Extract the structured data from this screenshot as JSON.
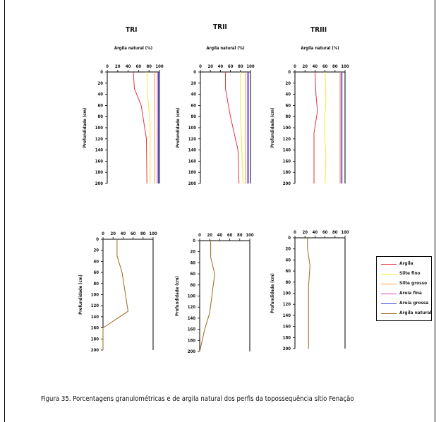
{
  "caption": "Figura 35. Porcentagens granulométricas e de argila natural dos perfis da topossequência sítio Fenação",
  "panel_titles": [
    "TRI",
    "TRII",
    "TRIII"
  ],
  "legend": [
    {
      "label": "Argila",
      "color": "#e8333d"
    },
    {
      "label": "Silte fino",
      "color": "#f5e83a"
    },
    {
      "label": "Silte grosso",
      "color": "#f0a040"
    },
    {
      "label": "Areia fina",
      "color": "#cc44cc"
    },
    {
      "label": "Areia grossa",
      "color": "#3344dd"
    },
    {
      "label": "Argila natural",
      "color": "#9a6a1a"
    }
  ],
  "chart_data": [
    {
      "type": "line",
      "title": "TRI",
      "xlabel": "Argila natural (%)",
      "ylabel": "Profundidade (cm)",
      "xlim": [
        0,
        100
      ],
      "ylim": [
        0,
        200
      ],
      "xticks": [
        0,
        20,
        40,
        60,
        80,
        100
      ],
      "yticks": [
        0,
        20,
        40,
        60,
        80,
        100,
        120,
        140,
        160,
        180,
        200
      ],
      "x_axis": "top",
      "y_inverted": true,
      "series": [
        {
          "name": "Argila",
          "color": "#e8333d",
          "points": [
            [
              50,
              0
            ],
            [
              52,
              30
            ],
            [
              65,
              60
            ],
            [
              75,
              120
            ],
            [
              76,
              200
            ]
          ]
        },
        {
          "name": "Silte fino",
          "color": "#f5e83a",
          "points": [
            [
              76,
              0
            ],
            [
              77,
              40
            ],
            [
              82,
              90
            ],
            [
              82,
              200
            ]
          ]
        },
        {
          "name": "Silte grosso",
          "color": "#f0a040",
          "points": [
            [
              90,
              0
            ],
            [
              90,
              80
            ],
            [
              91,
              200
            ]
          ]
        },
        {
          "name": "Areia fina",
          "color": "#cc44cc",
          "points": [
            [
              96,
              0
            ],
            [
              96,
              200
            ]
          ]
        },
        {
          "name": "Areia grossa",
          "color": "#3344dd",
          "points": [
            [
              98,
              0
            ],
            [
              98,
              200
            ]
          ]
        }
      ]
    },
    {
      "type": "line",
      "title": "TRII",
      "xlabel": "Argila natural (%)",
      "ylabel": "Profundidade (cm)",
      "xlim": [
        0,
        100
      ],
      "ylim": [
        0,
        200
      ],
      "xticks": [
        0,
        20,
        40,
        60,
        80,
        100
      ],
      "yticks": [
        0,
        20,
        40,
        60,
        80,
        100,
        120,
        140,
        160,
        180,
        200
      ],
      "x_axis": "top",
      "y_inverted": true,
      "series": [
        {
          "name": "Argila",
          "color": "#e8333d",
          "points": [
            [
              50,
              0
            ],
            [
              50,
              30
            ],
            [
              60,
              80
            ],
            [
              75,
              140
            ],
            [
              77,
              200
            ]
          ]
        },
        {
          "name": "Silte fino",
          "color": "#f5e83a",
          "points": [
            [
              80,
              0
            ],
            [
              80,
              80
            ],
            [
              82,
              120
            ],
            [
              85,
              200
            ]
          ]
        },
        {
          "name": "Silte grosso",
          "color": "#f0a040",
          "points": [
            [
              90,
              0
            ],
            [
              90,
              200
            ]
          ]
        },
        {
          "name": "Areia fina",
          "color": "#cc44cc",
          "points": [
            [
              94,
              0
            ],
            [
              94,
              200
            ]
          ]
        },
        {
          "name": "Areia grossa",
          "color": "#3344dd",
          "points": [
            [
              96,
              0
            ],
            [
              96,
              200
            ]
          ]
        }
      ]
    },
    {
      "type": "line",
      "title": "TRIII",
      "xlabel": "Argila natural (%)",
      "ylabel": "Profundidade (cm)",
      "xlim": [
        0,
        100
      ],
      "ylim": [
        0,
        200
      ],
      "xticks": [
        0,
        20,
        40,
        60,
        80,
        100
      ],
      "yticks": [
        0,
        20,
        40,
        60,
        80,
        100,
        120,
        140,
        160,
        180,
        200
      ],
      "x_axis": "top",
      "y_inverted": true,
      "series": [
        {
          "name": "Argila",
          "color": "#e8333d",
          "points": [
            [
              40,
              0
            ],
            [
              42,
              40
            ],
            [
              45,
              70
            ],
            [
              38,
              110
            ],
            [
              38,
              200
            ]
          ]
        },
        {
          "name": "Silte fino",
          "color": "#f5e83a",
          "points": [
            [
              60,
              0
            ],
            [
              62,
              50
            ],
            [
              58,
              100
            ],
            [
              62,
              150
            ],
            [
              60,
              200
            ]
          ]
        },
        {
          "name": "Silte grosso",
          "color": "#f0a040",
          "points": [
            [
              90,
              0
            ],
            [
              90,
              200
            ]
          ]
        },
        {
          "name": "Areia fina",
          "color": "#cc44cc",
          "points": [
            [
              92,
              0
            ],
            [
              92,
              200
            ]
          ]
        },
        {
          "name": "Areia grossa",
          "color": "#3344dd",
          "points": [
            [
              94,
              0
            ],
            [
              94,
              200
            ]
          ]
        }
      ]
    },
    {
      "type": "line",
      "title": "",
      "xlabel": "",
      "ylabel": "Profundidade (cm)",
      "xlim": [
        0,
        100
      ],
      "ylim": [
        0,
        200
      ],
      "xticks": [
        0,
        20,
        40,
        60,
        80,
        100
      ],
      "yticks": [
        0,
        20,
        40,
        60,
        80,
        100,
        120,
        140,
        160,
        180,
        200
      ],
      "x_axis": "top",
      "y_inverted": true,
      "series": [
        {
          "name": "Argila natural",
          "color": "#9a6a1a",
          "points": [
            [
              28,
              0
            ],
            [
              28,
              30
            ],
            [
              38,
              60
            ],
            [
              50,
              130
            ],
            [
              0,
              160
            ],
            [
              0,
              200
            ]
          ]
        }
      ]
    },
    {
      "type": "line",
      "title": "",
      "xlabel": "",
      "ylabel": "Profundidade (cm)",
      "xlim": [
        0,
        100
      ],
      "ylim": [
        0,
        200
      ],
      "xticks": [
        0,
        20,
        40,
        60,
        80,
        100
      ],
      "yticks": [
        0,
        20,
        40,
        60,
        80,
        100,
        120,
        140,
        160,
        180,
        200
      ],
      "x_axis": "top",
      "y_inverted": true,
      "series": [
        {
          "name": "Argila natural",
          "color": "#9a6a1a",
          "points": [
            [
              22,
              0
            ],
            [
              22,
              30
            ],
            [
              30,
              60
            ],
            [
              20,
              130
            ],
            [
              10,
              160
            ],
            [
              0,
              200
            ]
          ]
        }
      ]
    },
    {
      "type": "line",
      "title": "",
      "xlabel": "",
      "ylabel": "Profundidade (cm)",
      "xlim": [
        0,
        100
      ],
      "ylim": [
        0,
        200
      ],
      "xticks": [
        0,
        20,
        40,
        60,
        80,
        100
      ],
      "yticks": [
        0,
        20,
        40,
        60,
        80,
        100,
        120,
        140,
        160,
        180,
        200
      ],
      "x_axis": "top",
      "y_inverted": true,
      "series": [
        {
          "name": "Argila natural",
          "color": "#9a6a1a",
          "points": [
            [
              25,
              0
            ],
            [
              25,
              20
            ],
            [
              30,
              50
            ],
            [
              27,
              90
            ],
            [
              27,
              200
            ]
          ]
        }
      ]
    }
  ]
}
